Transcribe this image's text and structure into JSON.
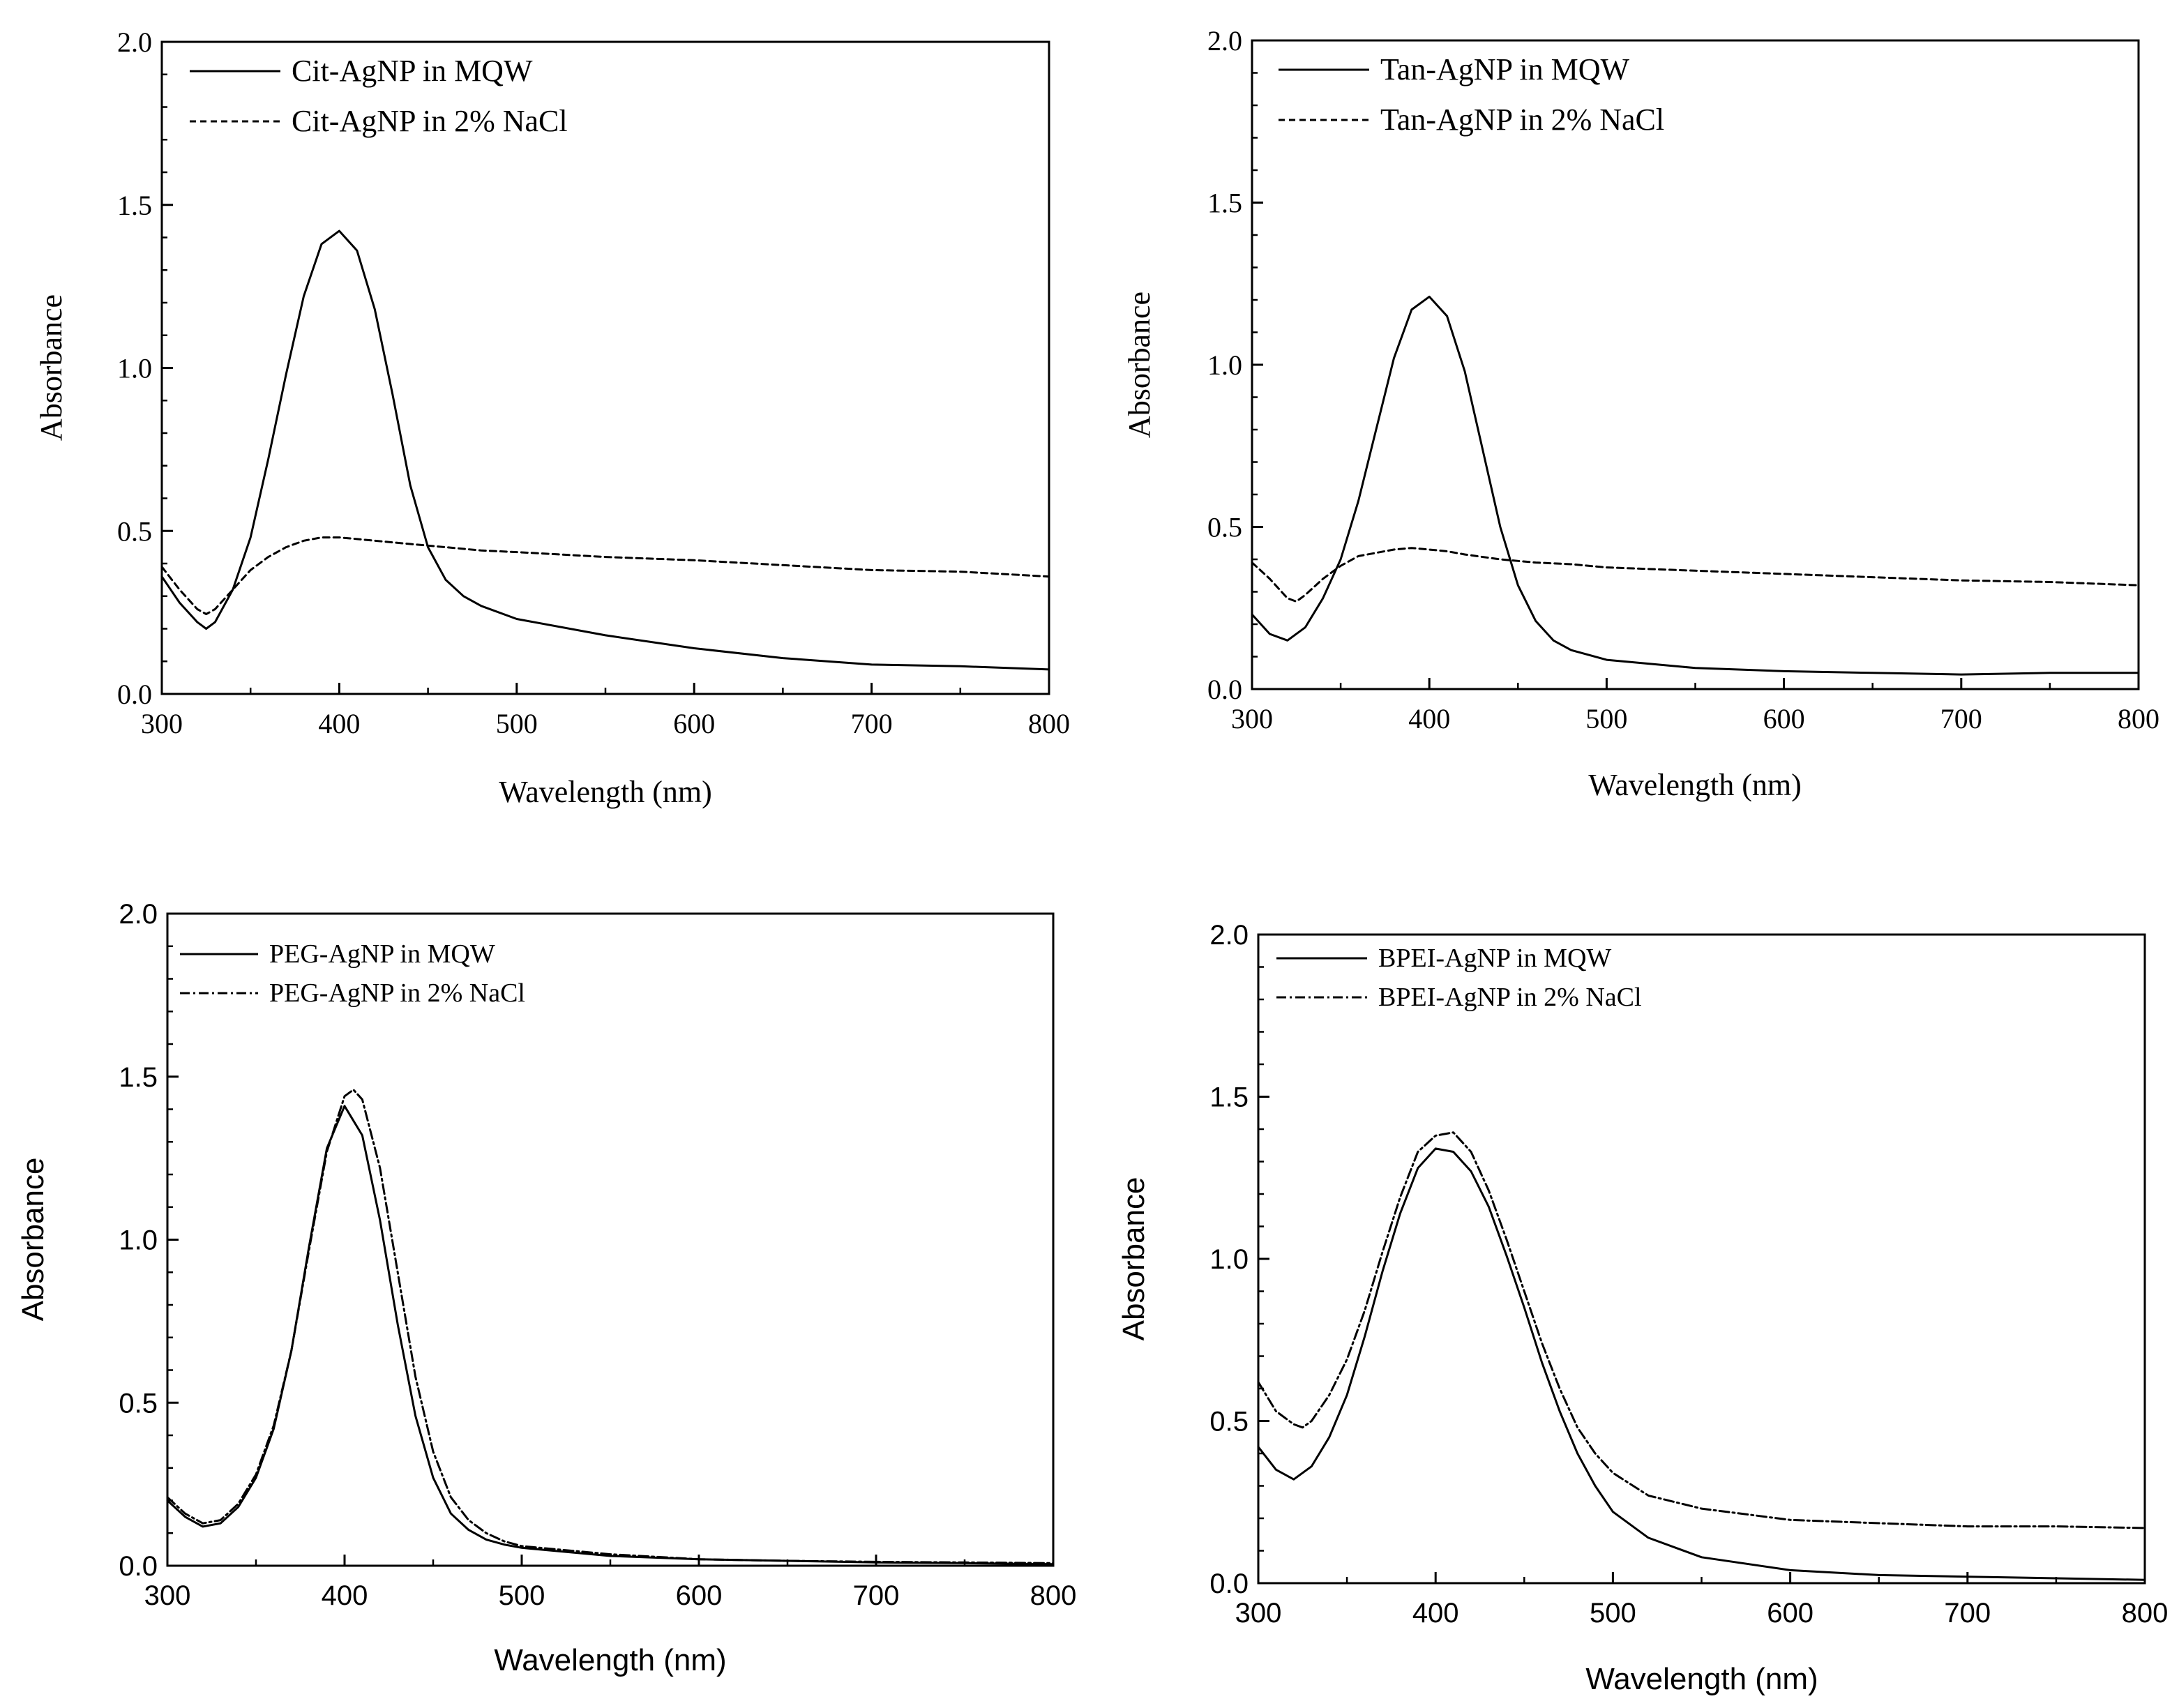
{
  "chart_data": [
    {
      "id": "cit",
      "type": "line",
      "xlabel": "Wavelength (nm)",
      "ylabel": "Absorbance",
      "xlim": [
        300,
        800
      ],
      "ylim": [
        0.0,
        2.0
      ],
      "xticks": [
        300,
        400,
        500,
        600,
        700,
        800
      ],
      "xtick_labels": [
        "300",
        "400",
        "500",
        "600",
        "700",
        "800"
      ],
      "yticks": [
        0.0,
        0.5,
        1.0,
        1.5,
        2.0
      ],
      "ytick_labels": [
        "0.0",
        "0.5",
        "1.0",
        "1.5",
        "2.0"
      ],
      "legend_position": "top-left",
      "series": [
        {
          "name": "Cit-AgNP in MQW",
          "style": "solid",
          "x": [
            300,
            310,
            320,
            325,
            330,
            340,
            350,
            360,
            370,
            380,
            390,
            400,
            410,
            420,
            430,
            440,
            450,
            460,
            470,
            480,
            500,
            550,
            600,
            650,
            700,
            750,
            800
          ],
          "y": [
            0.36,
            0.28,
            0.22,
            0.2,
            0.22,
            0.32,
            0.48,
            0.72,
            0.98,
            1.22,
            1.38,
            1.42,
            1.36,
            1.18,
            0.92,
            0.64,
            0.45,
            0.35,
            0.3,
            0.27,
            0.23,
            0.18,
            0.14,
            0.11,
            0.09,
            0.085,
            0.075
          ]
        },
        {
          "name": "Cit-AgNP in 2% NaCl",
          "style": "dashed",
          "x": [
            300,
            310,
            320,
            325,
            330,
            340,
            350,
            360,
            370,
            380,
            390,
            400,
            410,
            420,
            440,
            460,
            480,
            500,
            550,
            600,
            650,
            700,
            750,
            800
          ],
          "y": [
            0.39,
            0.32,
            0.26,
            0.245,
            0.26,
            0.32,
            0.38,
            0.42,
            0.45,
            0.47,
            0.48,
            0.48,
            0.475,
            0.47,
            0.46,
            0.45,
            0.44,
            0.435,
            0.42,
            0.41,
            0.395,
            0.38,
            0.375,
            0.36
          ]
        }
      ]
    },
    {
      "id": "tan",
      "type": "line",
      "xlabel": "Wavelength (nm)",
      "ylabel": "Absorbance",
      "xlim": [
        300,
        800
      ],
      "ylim": [
        0.0,
        2.0
      ],
      "xticks": [
        300,
        400,
        500,
        600,
        700,
        800
      ],
      "xtick_labels": [
        "300",
        "400",
        "500",
        "600",
        "700",
        "800"
      ],
      "yticks": [
        0.0,
        0.5,
        1.0,
        1.5,
        2.0
      ],
      "ytick_labels": [
        "0.0",
        "0.5",
        "1.0",
        "1.5",
        "2.0"
      ],
      "legend_position": "top-left",
      "series": [
        {
          "name": "Tan-AgNP in MQW",
          "style": "solid",
          "x": [
            300,
            310,
            320,
            330,
            340,
            350,
            360,
            370,
            380,
            390,
            400,
            410,
            420,
            430,
            440,
            450,
            460,
            470,
            480,
            500,
            550,
            600,
            650,
            700,
            750,
            800
          ],
          "y": [
            0.23,
            0.17,
            0.15,
            0.19,
            0.28,
            0.4,
            0.58,
            0.8,
            1.02,
            1.17,
            1.21,
            1.15,
            0.98,
            0.74,
            0.5,
            0.32,
            0.21,
            0.15,
            0.12,
            0.09,
            0.065,
            0.055,
            0.05,
            0.045,
            0.05,
            0.05
          ]
        },
        {
          "name": "Tan-AgNP in 2% NaCl",
          "style": "dashed",
          "x": [
            300,
            310,
            320,
            325,
            330,
            340,
            350,
            360,
            370,
            380,
            390,
            400,
            410,
            420,
            440,
            460,
            480,
            500,
            550,
            600,
            650,
            700,
            750,
            800
          ],
          "y": [
            0.39,
            0.34,
            0.28,
            0.27,
            0.29,
            0.34,
            0.38,
            0.41,
            0.42,
            0.43,
            0.435,
            0.43,
            0.425,
            0.415,
            0.4,
            0.39,
            0.385,
            0.375,
            0.365,
            0.355,
            0.345,
            0.335,
            0.33,
            0.32
          ]
        }
      ]
    },
    {
      "id": "peg",
      "type": "line",
      "xlabel": "Wavelength (nm)",
      "ylabel": "Absorbance",
      "xlim": [
        300,
        800
      ],
      "ylim": [
        0.0,
        2.0
      ],
      "xticks": [
        300,
        400,
        500,
        600,
        700,
        800
      ],
      "xtick_labels": [
        "300",
        "400",
        "500",
        "600",
        "700",
        "800"
      ],
      "yticks": [
        0.0,
        0.5,
        1.0,
        1.5,
        2.0
      ],
      "ytick_labels": [
        "0.0",
        "0.5",
        "1.0",
        "1.5",
        "2.0"
      ],
      "legend_position": "top-left",
      "series": [
        {
          "name": "PEG-AgNP in MQW",
          "style": "solid",
          "x": [
            300,
            310,
            320,
            330,
            340,
            350,
            360,
            370,
            380,
            390,
            400,
            410,
            420,
            430,
            440,
            450,
            460,
            470,
            480,
            490,
            500,
            550,
            600,
            650,
            700,
            750,
            800
          ],
          "y": [
            0.2,
            0.15,
            0.12,
            0.13,
            0.18,
            0.27,
            0.42,
            0.66,
            0.98,
            1.28,
            1.41,
            1.32,
            1.06,
            0.74,
            0.46,
            0.27,
            0.16,
            0.11,
            0.08,
            0.065,
            0.055,
            0.03,
            0.02,
            0.015,
            0.01,
            0.008,
            0.005
          ]
        },
        {
          "name": "PEG-AgNP in 2% NaCl",
          "style": "dashdot",
          "x": [
            300,
            310,
            320,
            330,
            340,
            350,
            360,
            370,
            380,
            390,
            400,
            405,
            410,
            420,
            430,
            440,
            450,
            460,
            470,
            480,
            490,
            500,
            550,
            600,
            650,
            700,
            750,
            800
          ],
          "y": [
            0.21,
            0.16,
            0.13,
            0.14,
            0.19,
            0.28,
            0.43,
            0.66,
            0.97,
            1.27,
            1.44,
            1.46,
            1.43,
            1.22,
            0.9,
            0.58,
            0.35,
            0.21,
            0.14,
            0.1,
            0.075,
            0.06,
            0.035,
            0.02,
            0.015,
            0.012,
            0.01,
            0.008
          ]
        }
      ]
    },
    {
      "id": "bpei",
      "type": "line",
      "xlabel": "Wavelength (nm)",
      "ylabel": "Absorbance",
      "xlim": [
        300,
        800
      ],
      "ylim": [
        0.0,
        2.0
      ],
      "xticks": [
        300,
        400,
        500,
        600,
        700,
        800
      ],
      "xtick_labels": [
        "300",
        "400",
        "500",
        "600",
        "700",
        "800"
      ],
      "yticks": [
        0.0,
        0.5,
        1.0,
        1.5,
        2.0
      ],
      "ytick_labels": [
        "0.0",
        "0.5",
        "1.0",
        "1.5",
        "2.0"
      ],
      "legend_position": "top-left",
      "series": [
        {
          "name": "BPEI-AgNP in MQW",
          "style": "solid",
          "x": [
            300,
            310,
            320,
            330,
            340,
            350,
            360,
            370,
            380,
            390,
            400,
            410,
            420,
            430,
            440,
            450,
            460,
            470,
            480,
            490,
            500,
            520,
            550,
            600,
            650,
            700,
            750,
            800
          ],
          "y": [
            0.42,
            0.35,
            0.32,
            0.36,
            0.45,
            0.58,
            0.76,
            0.96,
            1.14,
            1.28,
            1.34,
            1.33,
            1.27,
            1.16,
            1.01,
            0.85,
            0.68,
            0.53,
            0.4,
            0.3,
            0.22,
            0.14,
            0.08,
            0.04,
            0.025,
            0.02,
            0.015,
            0.01
          ]
        },
        {
          "name": "BPEI-AgNP in 2% NaCl",
          "style": "dashdot",
          "x": [
            300,
            310,
            320,
            325,
            330,
            340,
            350,
            360,
            370,
            380,
            390,
            400,
            410,
            420,
            430,
            440,
            450,
            460,
            470,
            480,
            490,
            500,
            520,
            550,
            600,
            650,
            700,
            750,
            800
          ],
          "y": [
            0.62,
            0.53,
            0.49,
            0.48,
            0.5,
            0.58,
            0.69,
            0.84,
            1.02,
            1.19,
            1.33,
            1.38,
            1.39,
            1.33,
            1.21,
            1.06,
            0.9,
            0.74,
            0.6,
            0.48,
            0.4,
            0.34,
            0.27,
            0.23,
            0.195,
            0.185,
            0.175,
            0.175,
            0.17
          ]
        }
      ]
    }
  ]
}
